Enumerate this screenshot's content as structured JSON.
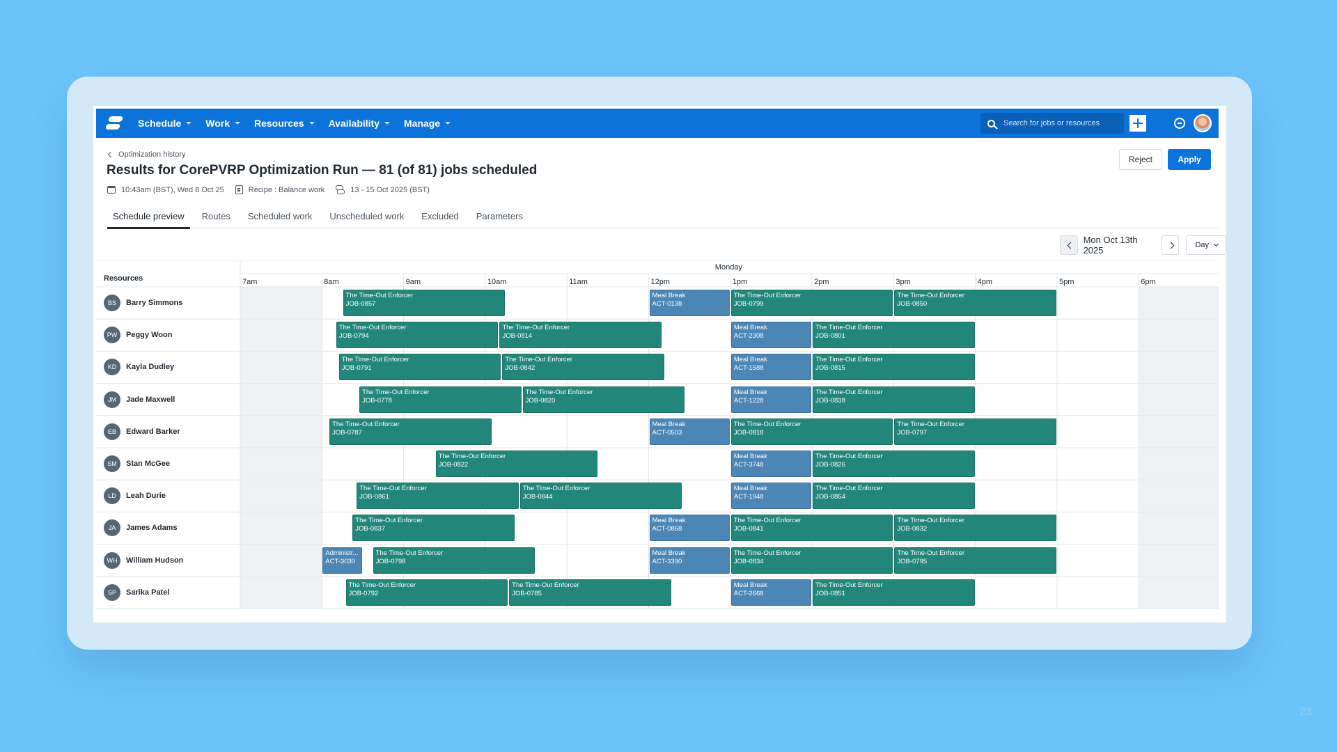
{
  "nav": {
    "menu": [
      {
        "label": "Schedule"
      },
      {
        "label": "Work"
      },
      {
        "label": "Resources"
      },
      {
        "label": "Availability"
      },
      {
        "label": "Manage"
      }
    ],
    "search_placeholder": "Search for jobs or resources",
    "icons": {
      "logo": "logo-icon",
      "search": "search-icon",
      "add": "plus-icon",
      "sync": "sync-icon",
      "user": "user-avatar"
    }
  },
  "header": {
    "back_label": "Optimization history",
    "title": "Results for CorePVRP Optimization Run — 81 (of 81) jobs scheduled",
    "meta": {
      "timestamp": "10:43am (BST), Wed 8 Oct 25",
      "recipe": "Recipe : Balance work",
      "range": "13 - 15 Oct 2025 (BST)"
    },
    "reject_label": "Reject",
    "apply_label": "Apply"
  },
  "tabs": [
    {
      "label": "Schedule preview",
      "active": true
    },
    {
      "label": "Routes"
    },
    {
      "label": "Scheduled work"
    },
    {
      "label": "Unscheduled work"
    },
    {
      "label": "Excluded"
    },
    {
      "label": "Parameters"
    }
  ],
  "date_nav": {
    "date": "Mon Oct 13th 2025",
    "view": "Day"
  },
  "schedule": {
    "resources_header": "Resources",
    "day": "Monday",
    "start_hour": 7,
    "hours": [
      "7am",
      "8am",
      "9am",
      "10am",
      "11am",
      "12pm",
      "1pm",
      "2pm",
      "3pm",
      "4pm",
      "5pm",
      "6pm"
    ],
    "working_hours": [
      8,
      18
    ],
    "colors": {
      "job": "#22877a",
      "break": "#4c86b5",
      "offhours": "#eef1f4"
    },
    "resources": [
      {
        "initials": "BS",
        "name": "Barry Simmons",
        "blocks": [
          {
            "type": "job",
            "title": "The Time-Out Enforcer",
            "id": "JOB-0857",
            "start": "08:15",
            "end": "10:15"
          },
          {
            "type": "break",
            "title": "Meal Break",
            "id": "ACT-0138",
            "start": "12:00",
            "end": "13:00"
          },
          {
            "type": "job",
            "title": "The Time-Out Enforcer",
            "id": "JOB-0799",
            "start": "13:00",
            "end": "15:00"
          },
          {
            "type": "job",
            "title": "The Time-Out Enforcer",
            "id": "JOB-0850",
            "start": "15:00",
            "end": "17:00"
          }
        ]
      },
      {
        "initials": "PW",
        "name": "Peggy Woon",
        "blocks": [
          {
            "type": "job",
            "title": "The Time-Out Enforcer",
            "id": "JOB-0794",
            "start": "08:10",
            "end": "10:10"
          },
          {
            "type": "job",
            "title": "The Time-Out Enforcer",
            "id": "JOB-0814",
            "start": "10:10",
            "end": "12:10"
          },
          {
            "type": "break",
            "title": "Meal Break",
            "id": "ACT-2308",
            "start": "13:00",
            "end": "14:00"
          },
          {
            "type": "job",
            "title": "The Time-Out Enforcer",
            "id": "JOB-0801",
            "start": "14:00",
            "end": "16:00"
          }
        ]
      },
      {
        "initials": "KD",
        "name": "Kayla Dudley",
        "blocks": [
          {
            "type": "job",
            "title": "The Time-Out Enforcer",
            "id": "JOB-0791",
            "start": "08:12",
            "end": "10:12"
          },
          {
            "type": "job",
            "title": "The Time-Out Enforcer",
            "id": "JOB-0842",
            "start": "10:12",
            "end": "12:12"
          },
          {
            "type": "break",
            "title": "Meal Break",
            "id": "ACT-1588",
            "start": "13:00",
            "end": "14:00"
          },
          {
            "type": "job",
            "title": "The Time-Out Enforcer",
            "id": "JOB-0815",
            "start": "14:00",
            "end": "16:00"
          }
        ]
      },
      {
        "initials": "JM",
        "name": "Jade Maxwell",
        "blocks": [
          {
            "type": "job",
            "title": "The Time-Out Enforcer",
            "id": "JOB-0778",
            "start": "08:27",
            "end": "10:27"
          },
          {
            "type": "job",
            "title": "The Time-Out Enforcer",
            "id": "JOB-0820",
            "start": "10:27",
            "end": "12:27"
          },
          {
            "type": "break",
            "title": "Meal Break",
            "id": "ACT-1228",
            "start": "13:00",
            "end": "14:00"
          },
          {
            "type": "job",
            "title": "The Time-Out Enforcer",
            "id": "JOB-0838",
            "start": "14:00",
            "end": "16:00"
          }
        ]
      },
      {
        "initials": "EB",
        "name": "Edward Barker",
        "blocks": [
          {
            "type": "job",
            "title": "The Time-Out Enforcer",
            "id": "JOB-0787",
            "start": "08:05",
            "end": "10:05"
          },
          {
            "type": "break",
            "title": "Meal Break",
            "id": "ACT-0503",
            "start": "12:00",
            "end": "13:00"
          },
          {
            "type": "job",
            "title": "The Time-Out Enforcer",
            "id": "JOB-0818",
            "start": "13:00",
            "end": "15:00"
          },
          {
            "type": "job",
            "title": "The Time-Out Enforcer",
            "id": "JOB-0797",
            "start": "15:00",
            "end": "17:00"
          }
        ]
      },
      {
        "initials": "SM",
        "name": "Stan McGee",
        "blocks": [
          {
            "type": "job",
            "title": "The Time-Out Enforcer",
            "id": "JOB-0822",
            "start": "09:23",
            "end": "11:23"
          },
          {
            "type": "break",
            "title": "Meal Break",
            "id": "ACT-3748",
            "start": "13:00",
            "end": "14:00"
          },
          {
            "type": "job",
            "title": "The Time-Out Enforcer",
            "id": "JOB-0826",
            "start": "14:00",
            "end": "16:00"
          }
        ]
      },
      {
        "initials": "LD",
        "name": "Leah Durie",
        "blocks": [
          {
            "type": "job",
            "title": "The Time-Out Enforcer",
            "id": "JOB-0861",
            "start": "08:25",
            "end": "10:25"
          },
          {
            "type": "job",
            "title": "The Time-Out Enforcer",
            "id": "JOB-0844",
            "start": "10:25",
            "end": "12:25"
          },
          {
            "type": "break",
            "title": "Meal Break",
            "id": "ACT-1948",
            "start": "13:00",
            "end": "14:00"
          },
          {
            "type": "job",
            "title": "The Time-Out Enforcer",
            "id": "JOB-0854",
            "start": "14:00",
            "end": "16:00"
          }
        ]
      },
      {
        "initials": "JA",
        "name": "James Adams",
        "blocks": [
          {
            "type": "job",
            "title": "The Time-Out Enforcer",
            "id": "JOB-0837",
            "start": "08:22",
            "end": "10:22"
          },
          {
            "type": "break",
            "title": "Meal Break",
            "id": "ACT-0868",
            "start": "12:00",
            "end": "13:00"
          },
          {
            "type": "job",
            "title": "The Time-Out Enforcer",
            "id": "JOB-0841",
            "start": "13:00",
            "end": "15:00"
          },
          {
            "type": "job",
            "title": "The Time-Out Enforcer",
            "id": "JOB-0832",
            "start": "15:00",
            "end": "17:00"
          }
        ]
      },
      {
        "initials": "WH",
        "name": "William Hudson",
        "blocks": [
          {
            "type": "break",
            "title": "Administr...",
            "id": "ACT-3030",
            "start": "08:00",
            "end": "08:30"
          },
          {
            "type": "job",
            "title": "The Time-Out Enforcer",
            "id": "JOB-0798",
            "start": "08:37",
            "end": "10:37"
          },
          {
            "type": "break",
            "title": "Meal Break",
            "id": "ACT-3390",
            "start": "12:00",
            "end": "13:00"
          },
          {
            "type": "job",
            "title": "The Time-Out Enforcer",
            "id": "JOB-0834",
            "start": "13:00",
            "end": "15:00"
          },
          {
            "type": "job",
            "title": "The Time-Out Enforcer",
            "id": "JOB-0795",
            "start": "15:00",
            "end": "17:00"
          }
        ]
      },
      {
        "initials": "SP",
        "name": "Sarika Patel",
        "blocks": [
          {
            "type": "job",
            "title": "The Time-Out Enforcer",
            "id": "JOB-0792",
            "start": "08:17",
            "end": "10:17"
          },
          {
            "type": "job",
            "title": "The Time-Out Enforcer",
            "id": "JOB-0785",
            "start": "10:17",
            "end": "12:17"
          },
          {
            "type": "break",
            "title": "Meal Break",
            "id": "ACT-2668",
            "start": "13:00",
            "end": "14:00"
          },
          {
            "type": "job",
            "title": "The Time-Out Enforcer",
            "id": "JOB-0851",
            "start": "14:00",
            "end": "16:00"
          }
        ]
      }
    ]
  },
  "page_number": "23"
}
